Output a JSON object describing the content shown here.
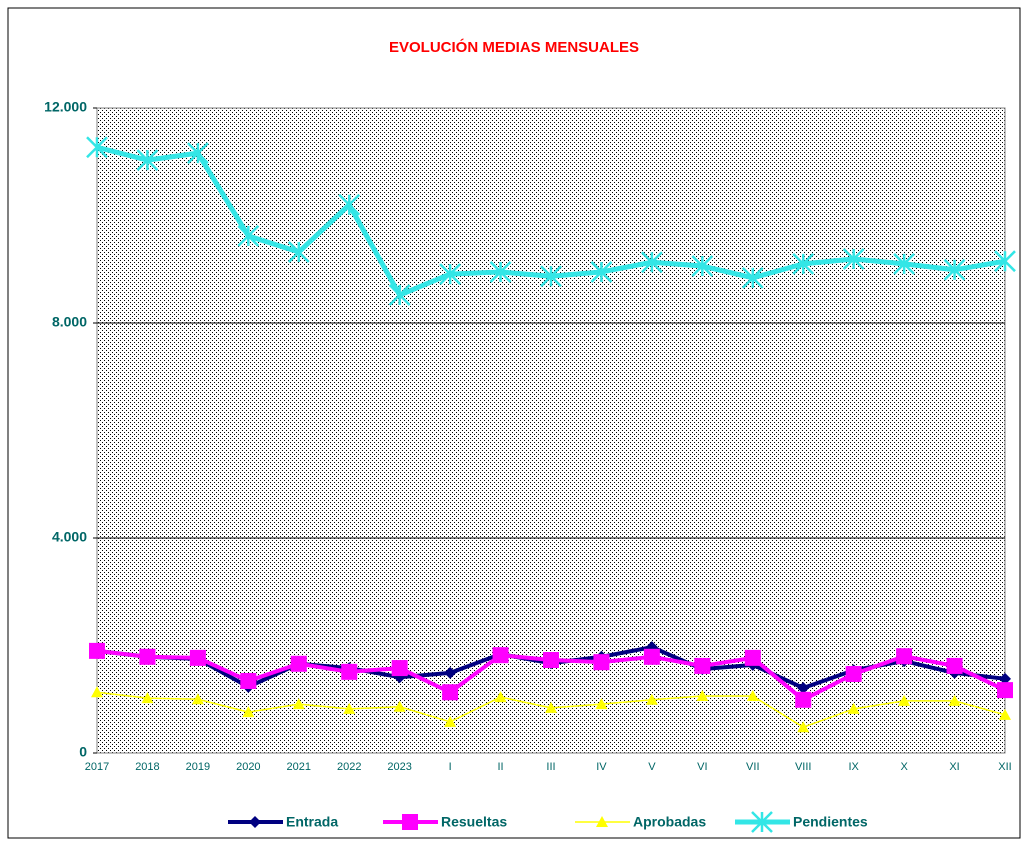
{
  "chart_data": {
    "type": "line",
    "title": "EVOLUCIÓN MEDIAS MENSUALES",
    "categories": [
      "2017",
      "2018",
      "2019",
      "2020",
      "2021",
      "2022",
      "2023",
      "I",
      "II",
      "III",
      "IV",
      "V",
      "VI",
      "VII",
      "VIII",
      "IX",
      "X",
      "XI",
      "XII"
    ],
    "series": [
      {
        "name": "Entrada",
        "color": "#000080",
        "marker": "diamond",
        "values": [
          1900,
          1790,
          1750,
          1230,
          1660,
          1580,
          1410,
          1490,
          1840,
          1670,
          1790,
          1970,
          1560,
          1640,
          1210,
          1540,
          1710,
          1490,
          1380
        ]
      },
      {
        "name": "Resueltas",
        "color": "#ff00ff",
        "marker": "square",
        "values": [
          1900,
          1790,
          1770,
          1340,
          1660,
          1510,
          1580,
          1130,
          1820,
          1730,
          1690,
          1790,
          1620,
          1770,
          990,
          1470,
          1800,
          1620,
          1170
        ]
      },
      {
        "name": "Aprobadas",
        "color": "#ffff00",
        "marker": "triangle",
        "values": [
          1130,
          1020,
          1000,
          760,
          910,
          820,
          860,
          580,
          1040,
          840,
          910,
          990,
          1060,
          1060,
          480,
          820,
          970,
          970,
          710
        ]
      },
      {
        "name": "Pendientes",
        "color": "#33e6e6",
        "marker": "star",
        "values": [
          11270,
          11030,
          11160,
          9620,
          9320,
          10200,
          8520,
          8910,
          8950,
          8870,
          8950,
          9130,
          9060,
          8840,
          9100,
          9190,
          9100,
          8990,
          9150
        ]
      }
    ],
    "ylim": [
      0,
      12000
    ],
    "yticks": [
      0,
      {
        "value": 4000,
        "label": "4.000"
      },
      {
        "value": 8000,
        "label": "8.000"
      },
      {
        "value": 12000,
        "label": "12.000"
      }
    ],
    "grid": true,
    "legend": "bottom"
  }
}
